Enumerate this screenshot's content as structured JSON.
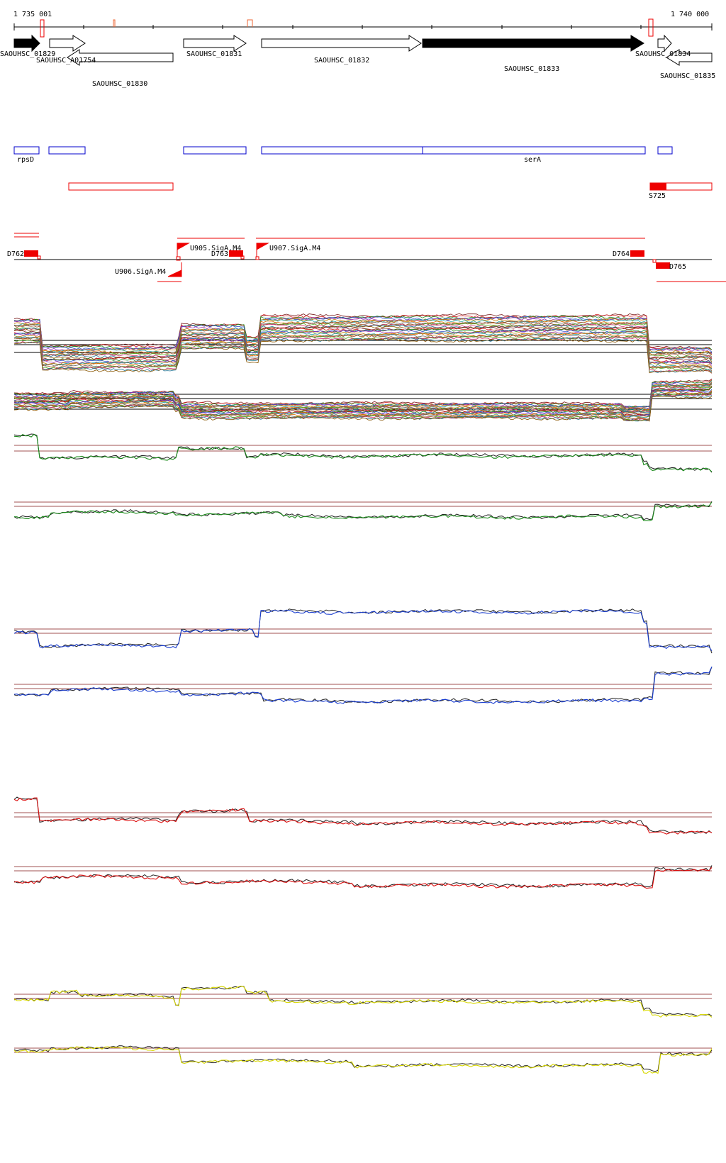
{
  "ruler": {
    "start_label": "1 735 001",
    "end_label": "1 740 000"
  },
  "genes": {
    "forward": [
      {
        "label": "SAOUHSC_01829",
        "filled": true
      },
      {
        "label": "SAOUHSC_A01754",
        "filled": false
      },
      {
        "label": "SAOUHSC_01831",
        "filled": false
      },
      {
        "label": "SAOUHSC_01832",
        "filled": false
      },
      {
        "label": "SAOUHSC_01833",
        "filled": true
      },
      {
        "label": "SAOUHSC_01834",
        "filled": false
      }
    ],
    "reverse": [
      {
        "label": "SAOUHSC_01830"
      },
      {
        "label": "SAOUHSC_01835"
      }
    ]
  },
  "annotations": {
    "blue_boxes": [
      "rpsD",
      "serA"
    ],
    "red_box_label": "S725"
  },
  "promoters_terminators": {
    "terminators": [
      "D762",
      "D763",
      "D764",
      "D765"
    ],
    "promoters": [
      "U905.SigA.M4",
      "U906.SigA.M4",
      "U907.SigA.M4"
    ]
  },
  "colors": {
    "gene_outline": "#000000",
    "annotation_blue": "#0000cc",
    "annotation_red": "#ee0000",
    "threshold_line": "#a05050",
    "track_green": "#1a8a1a",
    "track_blue": "#1c3fd0",
    "track_red": "#dd1111",
    "track_yellow": "#d8d800"
  }
}
